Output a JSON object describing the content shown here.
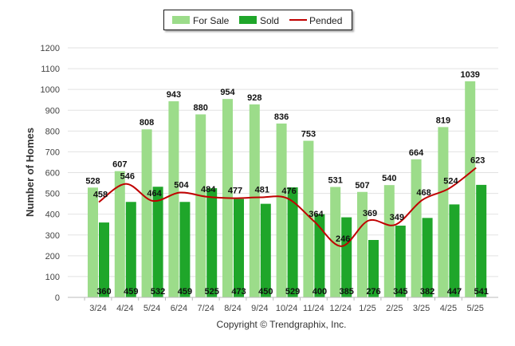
{
  "chart_data": {
    "type": "bar",
    "categories": [
      "3/24",
      "4/24",
      "5/24",
      "6/24",
      "7/24",
      "8/24",
      "9/24",
      "10/24",
      "11/24",
      "12/24",
      "1/25",
      "2/25",
      "3/25",
      "4/25",
      "5/25"
    ],
    "series": [
      {
        "name": "For Sale",
        "type": "bar",
        "color": "#9cdc8a",
        "values": [
          528,
          607,
          808,
          943,
          880,
          954,
          928,
          836,
          753,
          531,
          507,
          540,
          664,
          819,
          1039
        ]
      },
      {
        "name": "Sold",
        "type": "bar",
        "color": "#1fa62a",
        "values": [
          360,
          459,
          532,
          459,
          525,
          473,
          450,
          529,
          400,
          385,
          276,
          345,
          382,
          447,
          541
        ]
      },
      {
        "name": "Pended",
        "type": "line",
        "color": "#c00000",
        "values": [
          458,
          546,
          464,
          504,
          484,
          477,
          481,
          476,
          364,
          246,
          369,
          349,
          468,
          524,
          623
        ]
      }
    ],
    "ylabel": "Number of Homes",
    "ylim": [
      0,
      1200
    ],
    "yticks": [
      0,
      100,
      200,
      300,
      400,
      500,
      600,
      700,
      800,
      900,
      1000,
      1100,
      1200
    ],
    "grid": true,
    "legend": "top-center"
  },
  "legend": {
    "for_sale": "For Sale",
    "sold": "Sold",
    "pended": "Pended"
  },
  "copyright": "Copyright © Trendgraphix, Inc."
}
